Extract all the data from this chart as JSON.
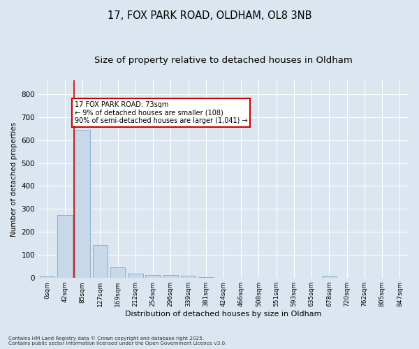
{
  "title_line1": "17, FOX PARK ROAD, OLDHAM, OL8 3NB",
  "title_line2": "Size of property relative to detached houses in Oldham",
  "xlabel": "Distribution of detached houses by size in Oldham",
  "ylabel": "Number of detached properties",
  "footnote1": "Contains HM Land Registry data © Crown copyright and database right 2025.",
  "footnote2": "Contains public sector information licensed under the Open Government Licence v3.0.",
  "bar_labels": [
    "0sqm",
    "42sqm",
    "85sqm",
    "127sqm",
    "169sqm",
    "212sqm",
    "254sqm",
    "296sqm",
    "339sqm",
    "381sqm",
    "424sqm",
    "466sqm",
    "508sqm",
    "551sqm",
    "593sqm",
    "635sqm",
    "678sqm",
    "720sqm",
    "762sqm",
    "805sqm",
    "847sqm"
  ],
  "bar_values": [
    8,
    275,
    645,
    143,
    46,
    20,
    14,
    12,
    10,
    3,
    0,
    0,
    0,
    0,
    0,
    0,
    7,
    0,
    0,
    0,
    0
  ],
  "bar_color": "#c8d8e8",
  "bar_edgecolor": "#7aaacc",
  "property_line_x": 1.5,
  "property_line_color": "#cc0000",
  "annotation_text": "17 FOX PARK ROAD: 73sqm\n← 9% of detached houses are smaller (108)\n90% of semi-detached houses are larger (1,041) →",
  "annotation_box_color": "#ffffff",
  "annotation_box_edgecolor": "#cc0000",
  "ylim": [
    0,
    860
  ],
  "yticks": [
    0,
    100,
    200,
    300,
    400,
    500,
    600,
    700,
    800
  ],
  "background_color": "#dce6f0",
  "plot_background": "#dce6f0",
  "grid_color": "#ffffff",
  "title_fontsize": 10.5,
  "subtitle_fontsize": 9.5
}
